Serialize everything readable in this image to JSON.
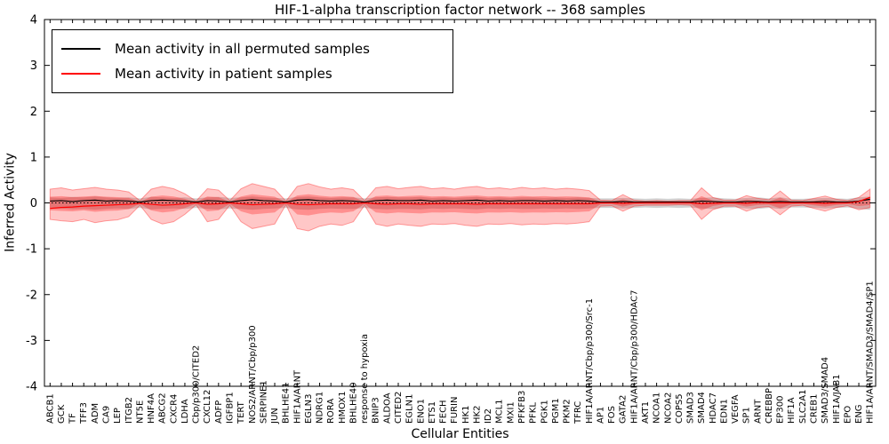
{
  "chart_data": {
    "type": "line",
    "title": "HIF-1-alpha transcription factor network -- 368 samples",
    "xlabel": "Cellular Entities",
    "ylabel": "Inferred Activity",
    "ylim": [
      -4,
      4
    ],
    "yticks": [
      -4,
      -3,
      -2,
      -1,
      0,
      1,
      2,
      3,
      4
    ],
    "grid": false,
    "zero_line": {
      "style": "dotted",
      "color": "#000000",
      "y": 0
    },
    "legend": {
      "position": "upper-left",
      "entries": [
        {
          "label": "Mean activity in all permuted samples",
          "color": "#000000"
        },
        {
          "label": "Mean activity in patient samples",
          "color": "#ff0000"
        }
      ]
    },
    "categories": [
      "ABCB1",
      "GCK",
      "TF",
      "TFF3",
      "ADM",
      "CA9",
      "LEP",
      "ITGB2",
      "NT5E",
      "HNF4A",
      "ABCG2",
      "CXCR4",
      "LDHA",
      "Cbp/p300/CITED2",
      "CXCL12",
      "ADFP",
      "IGFBP1",
      "TERT",
      "NOS2/ARNT/Cbp/p300",
      "SERPINE1",
      "JUN",
      "BHLHE41",
      "HIF1A/ARNT",
      "EGLN3",
      "NDRG1",
      "RORA",
      "HMOX1",
      "BHLHE40",
      "response to hypoxia",
      "BNIP3",
      "ALDOA",
      "CITED2",
      "EGLN1",
      "ENO1",
      "ETS1",
      "FECH",
      "FURIN",
      "HK1",
      "HK2",
      "ID2",
      "MCL1",
      "MXI1",
      "PFKFB3",
      "PFKL",
      "PGK1",
      "PGM1",
      "PKM2",
      "TFRC",
      "HIF1A/ARNT/Cbp/p300/Src-1",
      "AP1",
      "FOS",
      "GATA2",
      "HIF1A/ARNT/Cbp/p300/HDAC7",
      "AKT1",
      "NCOA1",
      "NCOA2",
      "COPS5",
      "SMAD3",
      "SMAD4",
      "HDAC7",
      "EDN1",
      "VEGFA",
      "SP1",
      "ARNT",
      "CREBBP",
      "EP300",
      "HIF1A",
      "SLC2A1",
      "CREB1",
      "SMAD3/SMAD4",
      "HIF1A/JAB1",
      "EPO",
      "ENG",
      "HIF1A/ARNT/SMAD3/SMAD4/SP1"
    ],
    "series": [
      {
        "name": "Mean activity in all permuted samples",
        "color": "#000000",
        "values": [
          0.04,
          0.05,
          0.03,
          0.05,
          0.06,
          0.04,
          0.05,
          0.04,
          0.02,
          0.05,
          0.06,
          0.05,
          0.04,
          0.02,
          0.05,
          0.04,
          0.02,
          0.05,
          0.07,
          0.05,
          0.04,
          0.02,
          0.06,
          0.07,
          0.05,
          0.04,
          0.05,
          0.04,
          0.02,
          0.05,
          0.06,
          0.05,
          0.05,
          0.06,
          0.04,
          0.05,
          0.04,
          0.05,
          0.06,
          0.04,
          0.05,
          0.04,
          0.05,
          0.05,
          0.04,
          0.05,
          0.04,
          0.05,
          0.04,
          0.02,
          0.02,
          0.03,
          0.02,
          0.02,
          0.02,
          0.02,
          0.02,
          0.02,
          0.04,
          0.03,
          0.02,
          0.02,
          0.03,
          0.03,
          0.02,
          0.03,
          0.02,
          0.02,
          0.02,
          0.03,
          0.02,
          0.02,
          0.04,
          0.08
        ]
      },
      {
        "name": "Mean activity in patient samples",
        "color": "#ff0000",
        "values": [
          -0.12,
          -0.1,
          -0.09,
          -0.07,
          -0.06,
          -0.05,
          -0.04,
          -0.03,
          -0.01,
          -0.03,
          -0.05,
          -0.04,
          -0.02,
          0.0,
          -0.03,
          -0.02,
          0.0,
          -0.02,
          -0.04,
          -0.03,
          -0.02,
          0.0,
          -0.03,
          -0.04,
          -0.03,
          -0.02,
          -0.02,
          -0.02,
          0.0,
          -0.02,
          -0.03,
          -0.02,
          -0.02,
          -0.03,
          -0.02,
          -0.02,
          -0.02,
          -0.02,
          -0.03,
          -0.02,
          -0.02,
          -0.02,
          -0.02,
          -0.02,
          -0.02,
          -0.02,
          -0.02,
          -0.02,
          -0.02,
          0.0,
          0.0,
          -0.01,
          0.0,
          0.0,
          0.0,
          0.0,
          0.0,
          0.0,
          -0.02,
          -0.01,
          0.0,
          0.0,
          -0.01,
          0.01,
          0.0,
          0.0,
          0.0,
          0.0,
          0.0,
          -0.01,
          0.0,
          0.0,
          0.03,
          0.12
        ]
      }
    ],
    "bands": [
      {
        "name": "patient-ci-outer",
        "color": "#ff0000",
        "opacity": 0.22,
        "upper": [
          0.3,
          0.33,
          0.28,
          0.31,
          0.34,
          0.3,
          0.28,
          0.24,
          0.05,
          0.3,
          0.36,
          0.31,
          0.2,
          0.04,
          0.31,
          0.28,
          0.05,
          0.31,
          0.42,
          0.36,
          0.3,
          0.04,
          0.36,
          0.42,
          0.35,
          0.3,
          0.33,
          0.29,
          0.05,
          0.33,
          0.36,
          0.31,
          0.34,
          0.36,
          0.31,
          0.33,
          0.3,
          0.34,
          0.36,
          0.31,
          0.33,
          0.3,
          0.34,
          0.31,
          0.33,
          0.3,
          0.32,
          0.3,
          0.27,
          0.06,
          0.05,
          0.18,
          0.06,
          0.04,
          0.05,
          0.04,
          0.05,
          0.05,
          0.33,
          0.12,
          0.06,
          0.06,
          0.16,
          0.1,
          0.07,
          0.26,
          0.06,
          0.05,
          0.1,
          0.15,
          0.08,
          0.05,
          0.12,
          0.3
        ],
        "lower": [
          -0.36,
          -0.39,
          -0.41,
          -0.36,
          -0.43,
          -0.39,
          -0.37,
          -0.3,
          -0.05,
          -0.36,
          -0.46,
          -0.41,
          -0.25,
          -0.04,
          -0.41,
          -0.36,
          -0.05,
          -0.41,
          -0.56,
          -0.51,
          -0.46,
          -0.04,
          -0.56,
          -0.61,
          -0.51,
          -0.46,
          -0.49,
          -0.41,
          -0.05,
          -0.46,
          -0.51,
          -0.46,
          -0.49,
          -0.51,
          -0.46,
          -0.47,
          -0.45,
          -0.49,
          -0.51,
          -0.46,
          -0.47,
          -0.45,
          -0.48,
          -0.46,
          -0.47,
          -0.45,
          -0.46,
          -0.44,
          -0.41,
          -0.07,
          -0.06,
          -0.18,
          -0.07,
          -0.05,
          -0.05,
          -0.05,
          -0.04,
          -0.05,
          -0.36,
          -0.15,
          -0.07,
          -0.07,
          -0.18,
          -0.1,
          -0.08,
          -0.26,
          -0.07,
          -0.05,
          -0.12,
          -0.18,
          -0.1,
          -0.06,
          -0.15,
          -0.1
        ]
      },
      {
        "name": "patient-ci-inner",
        "color": "#ff0000",
        "opacity": 0.28,
        "fraction_of": "patient-ci-outer",
        "fraction": 0.45
      },
      {
        "name": "permuted-ci",
        "color": "#999999",
        "opacity": 0.45,
        "upper": [
          0.12,
          0.11,
          0.13,
          0.12,
          0.14,
          0.12,
          0.11,
          0.12,
          0.1,
          0.13,
          0.12,
          0.11,
          0.12,
          0.1,
          0.12,
          0.13,
          0.11,
          0.12,
          0.14,
          0.12,
          0.11,
          0.1,
          0.13,
          0.14,
          0.12,
          0.11,
          0.12,
          0.12,
          0.1,
          0.12,
          0.13,
          0.12,
          0.12,
          0.13,
          0.11,
          0.12,
          0.11,
          0.12,
          0.13,
          0.11,
          0.12,
          0.11,
          0.12,
          0.12,
          0.11,
          0.12,
          0.11,
          0.12,
          0.11,
          0.1,
          0.1,
          0.11,
          0.1,
          0.09,
          0.1,
          0.09,
          0.1,
          0.09,
          0.11,
          0.12,
          0.1,
          0.09,
          0.11,
          0.12,
          0.1,
          0.12,
          0.09,
          0.09,
          0.1,
          0.11,
          0.1,
          0.09,
          0.12,
          0.14
        ],
        "lower": [
          -0.13,
          -0.12,
          -0.14,
          -0.13,
          -0.15,
          -0.13,
          -0.12,
          -0.13,
          -0.11,
          -0.14,
          -0.13,
          -0.12,
          -0.13,
          -0.11,
          -0.13,
          -0.14,
          -0.12,
          -0.13,
          -0.15,
          -0.13,
          -0.12,
          -0.11,
          -0.14,
          -0.15,
          -0.13,
          -0.12,
          -0.13,
          -0.13,
          -0.11,
          -0.13,
          -0.14,
          -0.13,
          -0.13,
          -0.14,
          -0.12,
          -0.13,
          -0.12,
          -0.13,
          -0.14,
          -0.12,
          -0.13,
          -0.12,
          -0.13,
          -0.13,
          -0.12,
          -0.13,
          -0.12,
          -0.13,
          -0.12,
          -0.11,
          -0.11,
          -0.12,
          -0.11,
          -0.1,
          -0.11,
          -0.1,
          -0.11,
          -0.1,
          -0.12,
          -0.13,
          -0.11,
          -0.1,
          -0.12,
          -0.13,
          -0.11,
          -0.13,
          -0.1,
          -0.1,
          -0.11,
          -0.12,
          -0.11,
          -0.1,
          -0.13,
          -0.15
        ]
      }
    ]
  }
}
